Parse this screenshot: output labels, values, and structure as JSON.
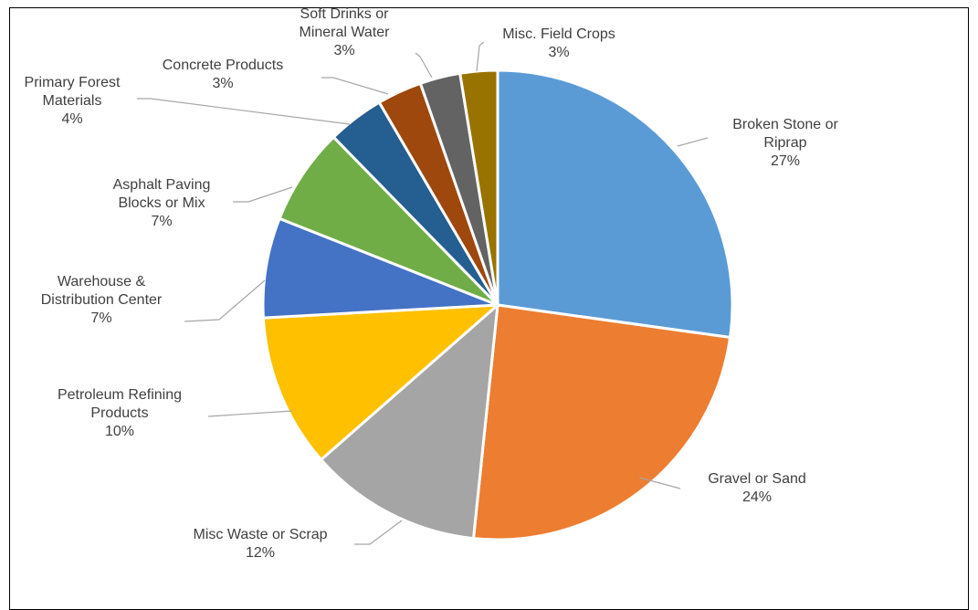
{
  "chart_data": {
    "type": "pie",
    "slices": [
      {
        "label": "Broken Stone or Riprap",
        "lines": [
          "Broken Stone or",
          "Riprap"
        ],
        "pct_label": "27%",
        "value": 26.5,
        "color": "#5b9bd5"
      },
      {
        "label": "Gravel or Sand",
        "lines": [
          "Gravel or Sand"
        ],
        "pct_label": "24%",
        "value": 23.8,
        "color": "#ed7d31"
      },
      {
        "label": "Misc Waste or Scrap",
        "lines": [
          "Misc Waste or Scrap"
        ],
        "pct_label": "12%",
        "value": 11.6,
        "color": "#a5a5a5"
      },
      {
        "label": "Petroleum Refining Products",
        "lines": [
          "Petroleum Refining",
          "Products"
        ],
        "pct_label": "10%",
        "value": 10.3,
        "color": "#ffc000"
      },
      {
        "label": "Warehouse & Distribution Center",
        "lines": [
          "Warehouse &",
          "Distribution Center"
        ],
        "pct_label": "7%",
        "value": 6.7,
        "color": "#4472c4"
      },
      {
        "label": "Asphalt Paving Blocks or Mix",
        "lines": [
          "Asphalt Paving",
          "Blocks or Mix"
        ],
        "pct_label": "7%",
        "value": 6.5,
        "color": "#70ad47"
      },
      {
        "label": "Primary Forest Materials",
        "lines": [
          "Primary Forest",
          "Materials"
        ],
        "pct_label": "4%",
        "value": 3.8,
        "color": "#255e91"
      },
      {
        "label": "Concrete Products",
        "lines": [
          "Concrete Products"
        ],
        "pct_label": "3%",
        "value": 3.0,
        "color": "#9e480e"
      },
      {
        "label": "Soft Drinks or Mineral Water",
        "lines": [
          "Soft Drinks or",
          "Mineral Water"
        ],
        "pct_label": "3%",
        "value": 2.7,
        "color": "#636363"
      },
      {
        "label": "Misc. Field Crops",
        "lines": [
          "Misc. Field Crops"
        ],
        "pct_label": "3%",
        "value": 2.5,
        "color": "#997300"
      }
    ]
  }
}
